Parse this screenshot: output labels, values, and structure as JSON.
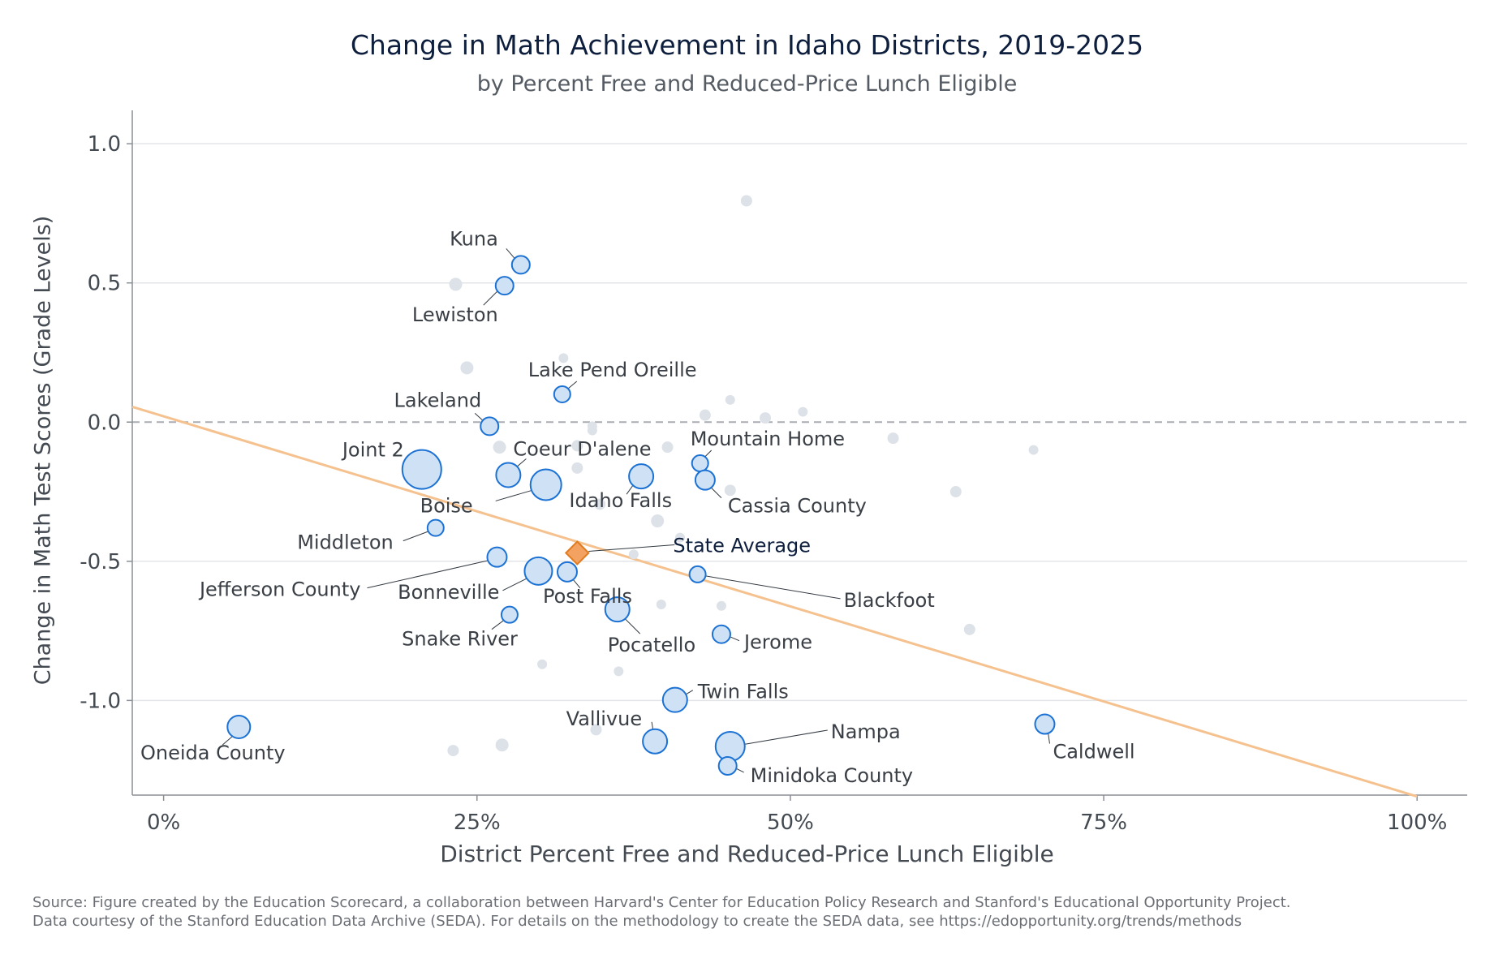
{
  "chart_data": {
    "type": "scatter",
    "title": "Change in Math Achievement in Idaho Districts, 2019-2025",
    "subtitle": "by Percent Free and Reduced-Price Lunch Eligible",
    "xlabel": "District Percent Free and Reduced-Price Lunch Eligible",
    "ylabel": "Change in Math Test Scores (Grade Levels)",
    "xlim": [
      -0.025,
      1.04
    ],
    "ylim": [
      -1.34,
      1.12
    ],
    "x_ticks": [
      0,
      0.25,
      0.5,
      0.75,
      1.0
    ],
    "x_tick_labels": [
      "0%",
      "25%",
      "50%",
      "75%",
      "100%"
    ],
    "y_ticks": [
      1.0,
      0.5,
      0.0,
      -0.5,
      -1.0
    ],
    "y_tick_labels": [
      "1.0",
      "0.5",
      "0.0",
      "-0.5",
      "-1.0"
    ],
    "reference_line_y": 0,
    "trend_line": {
      "x": [
        -0.025,
        1.0
      ],
      "y": [
        0.055,
        -1.345
      ]
    },
    "state_average": {
      "label": "State Average",
      "x": 0.33,
      "y": -0.47
    },
    "colors": {
      "labeled_fill": "#cfe2f5",
      "labeled_stroke": "#1c72d4",
      "other_fill": "#dde2e8",
      "trend": "#f5c28f",
      "state": "#f4a261",
      "state_stroke": "#e07c1f"
    },
    "labeled_districts": [
      {
        "name": "Kuna",
        "x": 0.285,
        "y": 0.565,
        "size": 11
      },
      {
        "name": "Lewiston",
        "x": 0.272,
        "y": 0.49,
        "size": 11
      },
      {
        "name": "Lake Pend Oreille",
        "x": 0.318,
        "y": 0.1,
        "size": 10
      },
      {
        "name": "Lakeland",
        "x": 0.26,
        "y": -0.015,
        "size": 11
      },
      {
        "name": "Joint 2",
        "x": 0.206,
        "y": -0.17,
        "size": 24
      },
      {
        "name": "Coeur D'alene",
        "x": 0.275,
        "y": -0.19,
        "size": 15
      },
      {
        "name": "Boise",
        "x": 0.305,
        "y": -0.225,
        "size": 19
      },
      {
        "name": "Idaho Falls",
        "x": 0.381,
        "y": -0.195,
        "size": 15
      },
      {
        "name": "Mountain Home",
        "x": 0.428,
        "y": -0.148,
        "size": 10
      },
      {
        "name": "Cassia County",
        "x": 0.432,
        "y": -0.208,
        "size": 12
      },
      {
        "name": "Middleton",
        "x": 0.217,
        "y": -0.38,
        "size": 10
      },
      {
        "name": "Jefferson County",
        "x": 0.266,
        "y": -0.485,
        "size": 12
      },
      {
        "name": "Bonneville",
        "x": 0.299,
        "y": -0.535,
        "size": 17
      },
      {
        "name": "Post Falls",
        "x": 0.322,
        "y": -0.538,
        "size": 12
      },
      {
        "name": "Blackfoot",
        "x": 0.426,
        "y": -0.547,
        "size": 10
      },
      {
        "name": "Snake River",
        "x": 0.276,
        "y": -0.692,
        "size": 10
      },
      {
        "name": "Pocatello",
        "x": 0.362,
        "y": -0.673,
        "size": 15
      },
      {
        "name": "Jerome",
        "x": 0.445,
        "y": -0.762,
        "size": 11
      },
      {
        "name": "Twin Falls",
        "x": 0.408,
        "y": -0.998,
        "size": 15
      },
      {
        "name": "Vallivue",
        "x": 0.392,
        "y": -1.147,
        "size": 15
      },
      {
        "name": "Nampa",
        "x": 0.452,
        "y": -1.165,
        "size": 18
      },
      {
        "name": "Minidoka County",
        "x": 0.45,
        "y": -1.235,
        "size": 11
      },
      {
        "name": "Caldwell",
        "x": 0.703,
        "y": -1.085,
        "size": 12
      },
      {
        "name": "Oneida County",
        "x": 0.06,
        "y": -1.095,
        "size": 14
      }
    ],
    "other_districts": [
      {
        "x": 0.465,
        "y": 0.795,
        "size": 7
      },
      {
        "x": 0.233,
        "y": 0.495,
        "size": 8
      },
      {
        "x": 0.242,
        "y": 0.195,
        "size": 8
      },
      {
        "x": 0.319,
        "y": 0.23,
        "size": 6
      },
      {
        "x": 0.452,
        "y": 0.08,
        "size": 6
      },
      {
        "x": 0.432,
        "y": 0.025,
        "size": 7
      },
      {
        "x": 0.48,
        "y": 0.015,
        "size": 7
      },
      {
        "x": 0.51,
        "y": 0.037,
        "size": 6
      },
      {
        "x": 0.342,
        "y": -0.015,
        "size": 6
      },
      {
        "x": 0.342,
        "y": -0.03,
        "size": 6
      },
      {
        "x": 0.268,
        "y": -0.09,
        "size": 8
      },
      {
        "x": 0.33,
        "y": -0.085,
        "size": 7
      },
      {
        "x": 0.402,
        "y": -0.09,
        "size": 7
      },
      {
        "x": 0.582,
        "y": -0.058,
        "size": 7
      },
      {
        "x": 0.694,
        "y": -0.1,
        "size": 6
      },
      {
        "x": 0.33,
        "y": -0.165,
        "size": 7
      },
      {
        "x": 0.452,
        "y": -0.245,
        "size": 7
      },
      {
        "x": 0.632,
        "y": -0.25,
        "size": 7
      },
      {
        "x": 0.348,
        "y": -0.295,
        "size": 7
      },
      {
        "x": 0.394,
        "y": -0.355,
        "size": 8
      },
      {
        "x": 0.412,
        "y": -0.415,
        "size": 6
      },
      {
        "x": 0.375,
        "y": -0.475,
        "size": 6
      },
      {
        "x": 0.397,
        "y": -0.655,
        "size": 6
      },
      {
        "x": 0.445,
        "y": -0.66,
        "size": 6
      },
      {
        "x": 0.643,
        "y": -0.745,
        "size": 7
      },
      {
        "x": 0.302,
        "y": -0.87,
        "size": 6
      },
      {
        "x": 0.363,
        "y": -0.895,
        "size": 6
      },
      {
        "x": 0.345,
        "y": -1.105,
        "size": 7
      },
      {
        "x": 0.27,
        "y": -1.16,
        "size": 8
      },
      {
        "x": 0.231,
        "y": -1.18,
        "size": 7
      }
    ]
  },
  "source_line1": "Source: Figure created by the Education Scorecard, a collaboration between Harvard's Center for Education Policy Research and Stanford's Educational Opportunity Project.",
  "source_line2": "Data courtesy of the Stanford Education Data Archive (SEDA). For details on the methodology to create the SEDA data, see https://edopportunity.org/trends/methods"
}
